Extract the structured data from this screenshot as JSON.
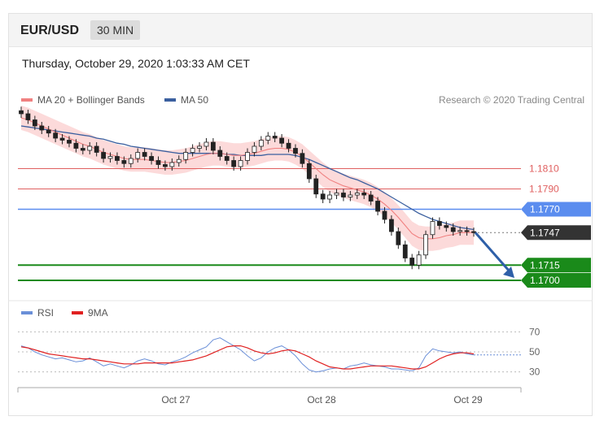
{
  "header": {
    "pair": "EUR/USD",
    "timeframe": "30 MIN"
  },
  "date_text": "Thursday, October 29, 2020 1:03:33 AM CET",
  "credit": "Research © 2020 Trading Central",
  "colors": {
    "ma20": "#f08080",
    "ma50": "#3a5f9f",
    "band": "#fbd3d3",
    "resistance": "#e06060",
    "pivot": "#5b8def",
    "support": "#1a8a1a",
    "rsi": "#6a8fd8",
    "rsi_ma": "#e02020",
    "candle": "#222222"
  },
  "chart_data": [
    {
      "type": "line",
      "title": "",
      "legend": [
        {
          "name": "MA 20 + Bollinger Bands",
          "color": "#f08080"
        },
        {
          "name": "MA 50",
          "color": "#3a5f9f"
        }
      ],
      "x_ticks": [
        "Oct 27",
        "Oct 28",
        "Oct 29"
      ],
      "ylim": [
        1.168,
        1.188
      ],
      "levels": [
        {
          "label": "1.1810",
          "value": 1.181,
          "role": "resistance"
        },
        {
          "label": "1.1790",
          "value": 1.179,
          "role": "resistance"
        },
        {
          "label": "1.1770",
          "value": 1.177,
          "role": "pivot"
        },
        {
          "label": "1.1747",
          "value": 1.1747,
          "role": "last-price"
        },
        {
          "label": "1.1715",
          "value": 1.1715,
          "role": "support"
        },
        {
          "label": "1.1700",
          "value": 1.17,
          "role": "support"
        }
      ],
      "series": [
        {
          "name": "Close",
          "values": [
            1.1864,
            1.1858,
            1.1852,
            1.1848,
            1.1845,
            1.184,
            1.1838,
            1.1835,
            1.183,
            1.1828,
            1.1832,
            1.1826,
            1.182,
            1.1822,
            1.1818,
            1.1815,
            1.182,
            1.1826,
            1.1822,
            1.1818,
            1.1814,
            1.1812,
            1.1816,
            1.1819,
            1.1826,
            1.183,
            1.1832,
            1.1836,
            1.1828,
            1.1822,
            1.1818,
            1.1812,
            1.1818,
            1.1826,
            1.1832,
            1.1838,
            1.1842,
            1.184,
            1.1835,
            1.183,
            1.1825,
            1.1815,
            1.18,
            1.1785,
            1.178,
            1.1784,
            1.1786,
            1.1782,
            1.1784,
            1.1786,
            1.1784,
            1.1778,
            1.1768,
            1.176,
            1.1748,
            1.1735,
            1.1722,
            1.1715,
            1.1725,
            1.1745,
            1.1758,
            1.1754,
            1.1752,
            1.1748,
            1.1749,
            1.1748,
            1.1747
          ]
        },
        {
          "name": "MA 20",
          "values": [
            1.186,
            1.1858,
            1.1855,
            1.1852,
            1.1849,
            1.1846,
            1.1843,
            1.184,
            1.1837,
            1.1834,
            1.1832,
            1.1829,
            1.1826,
            1.1824,
            1.1822,
            1.182,
            1.1819,
            1.1819,
            1.1819,
            1.1818,
            1.1817,
            1.1816,
            1.1816,
            1.1817,
            1.1818,
            1.182,
            1.1822,
            1.1824,
            1.1825,
            1.1825,
            1.1824,
            1.1823,
            1.1823,
            1.1824,
            1.1825,
            1.1827,
            1.1829,
            1.183,
            1.183,
            1.1829,
            1.1826,
            1.1822,
            1.1816,
            1.181,
            1.1804,
            1.1799,
            1.1796,
            1.1793,
            1.1791,
            1.1789,
            1.1787,
            1.1784,
            1.178,
            1.1775,
            1.1769,
            1.1762,
            1.1754,
            1.1746,
            1.1742,
            1.1741,
            1.1741,
            1.1742,
            1.1744,
            1.1745,
            1.1747,
            1.1747,
            1.1747
          ]
        },
        {
          "name": "MA 50",
          "values": [
            1.1852,
            1.1851,
            1.185,
            1.1849,
            1.1848,
            1.1847,
            1.1846,
            1.1845,
            1.1844,
            1.1843,
            1.1842,
            1.184,
            1.1839,
            1.1837,
            1.1835,
            1.1834,
            1.1832,
            1.1831,
            1.183,
            1.1829,
            1.1828,
            1.1827,
            1.1826,
            1.1825,
            1.1825,
            1.1825,
            1.1825,
            1.1825,
            1.1825,
            1.1825,
            1.1824,
            1.1824,
            1.1823,
            1.1823,
            1.1823,
            1.1823,
            1.1824,
            1.1824,
            1.1824,
            1.1824,
            1.1823,
            1.1821,
            1.1819,
            1.1816,
            1.1813,
            1.181,
            1.1807,
            1.1804,
            1.1801,
            1.1799,
            1.1796,
            1.1793,
            1.179,
            1.1786,
            1.1782,
            1.1778,
            1.1774,
            1.177,
            1.1766,
            1.1763,
            1.176,
            1.1758,
            1.1756,
            1.1754,
            1.1752,
            1.1751,
            1.175
          ]
        }
      ]
    },
    {
      "type": "line",
      "title": "",
      "legend": [
        {
          "name": "RSI",
          "color": "#6a8fd8"
        },
        {
          "name": "9MA",
          "color": "#e02020"
        }
      ],
      "y_ticks": [
        70,
        50,
        30
      ],
      "ylim": [
        20,
        80
      ],
      "series": [
        {
          "name": "RSI",
          "values": [
            56,
            54,
            50,
            47,
            45,
            43,
            44,
            42,
            40,
            41,
            44,
            40,
            36,
            38,
            36,
            34,
            37,
            41,
            43,
            41,
            38,
            37,
            40,
            42,
            45,
            49,
            52,
            55,
            62,
            64,
            60,
            56,
            52,
            46,
            41,
            44,
            50,
            54,
            56,
            52,
            46,
            38,
            32,
            30,
            31,
            33,
            34,
            33,
            36,
            37,
            39,
            37,
            36,
            35,
            33,
            33,
            32,
            31,
            34,
            46,
            53,
            51,
            50,
            49,
            50,
            48,
            47
          ]
        },
        {
          "name": "9MA",
          "values": [
            55,
            54,
            52,
            50,
            48,
            47,
            46,
            45,
            44,
            43,
            43,
            42,
            41,
            40,
            39,
            38,
            38,
            38,
            39,
            39,
            39,
            39,
            39,
            40,
            41,
            42,
            44,
            46,
            49,
            52,
            55,
            56,
            56,
            54,
            51,
            49,
            48,
            49,
            51,
            52,
            51,
            48,
            45,
            41,
            38,
            35,
            34,
            33,
            33,
            34,
            35,
            36,
            36,
            36,
            36,
            35,
            34,
            33,
            33,
            35,
            39,
            43,
            46,
            48,
            49,
            49,
            48
          ]
        }
      ]
    }
  ]
}
